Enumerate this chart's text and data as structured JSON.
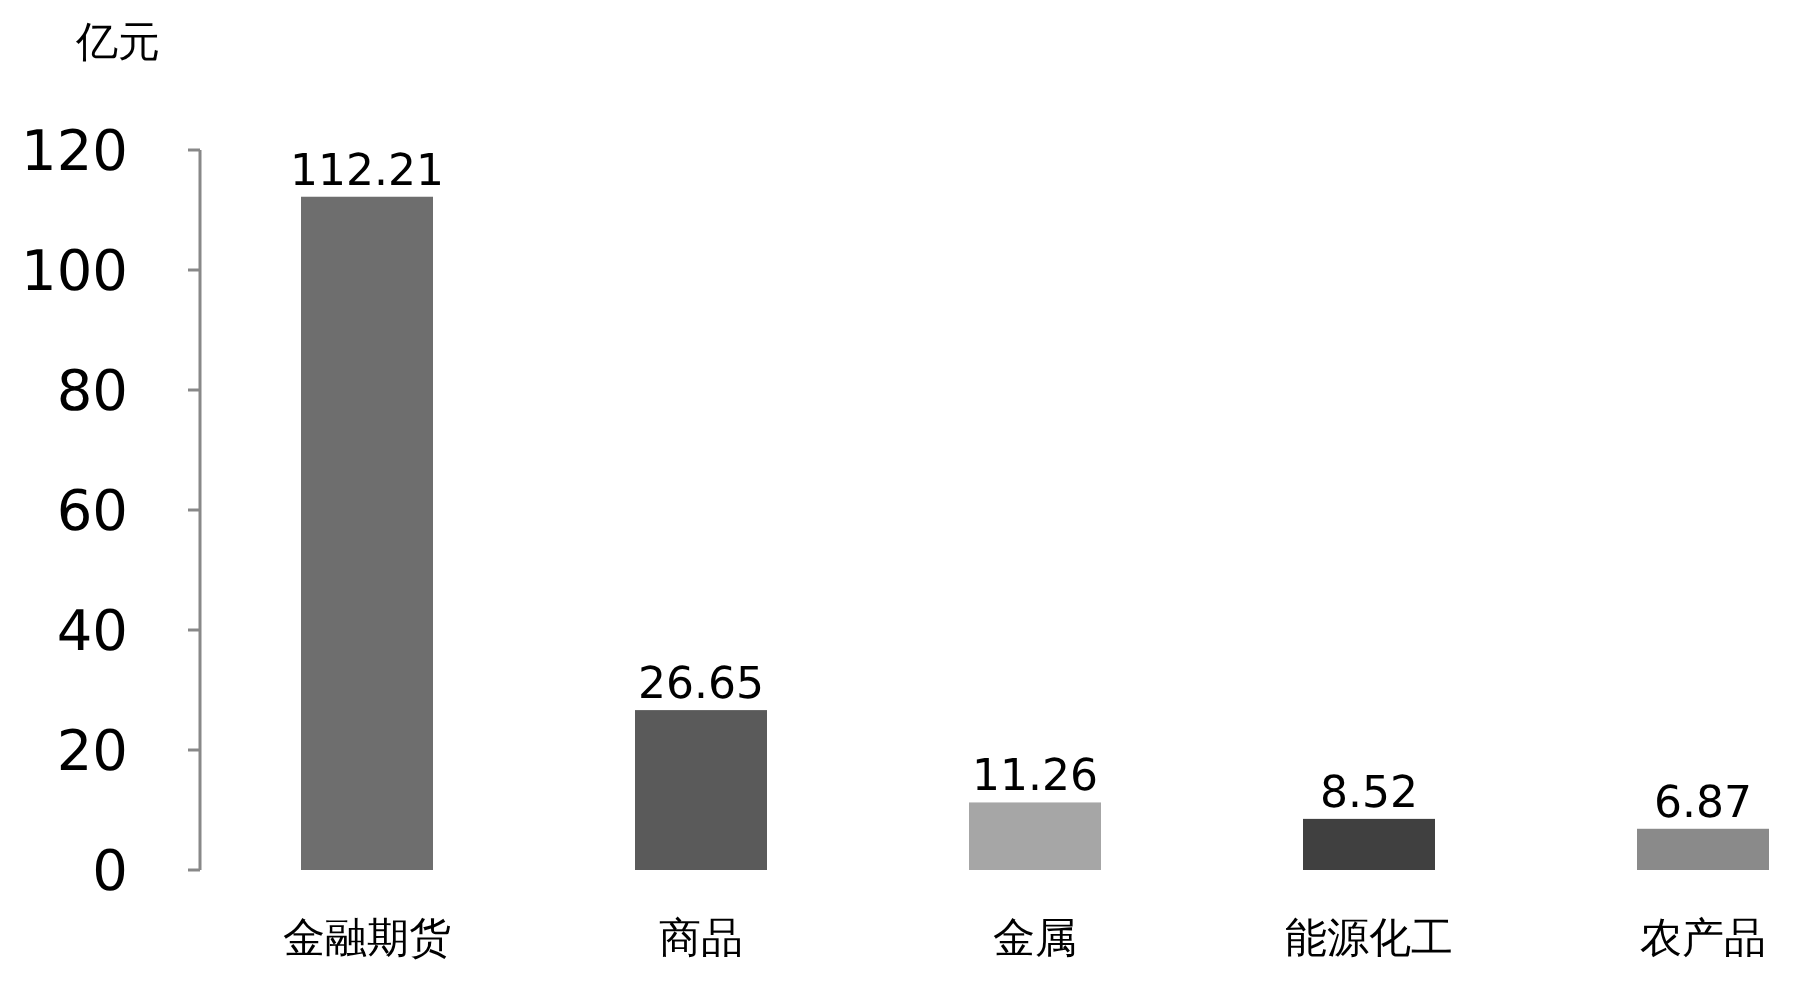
{
  "chart_data": {
    "type": "bar",
    "ylabel": "亿元",
    "categories": [
      "金融期货",
      "商品",
      "金属",
      "能源化工",
      "农产品"
    ],
    "values": [
      112.21,
      26.65,
      11.26,
      8.52,
      6.87
    ],
    "colors": [
      "#6e6e6e",
      "#5a5a5a",
      "#a6a6a6",
      "#404040",
      "#8a8a8a"
    ],
    "ylim": [
      0,
      120
    ],
    "yticks": [
      0,
      20,
      40,
      60,
      80,
      100,
      120
    ],
    "data_labels": true
  }
}
